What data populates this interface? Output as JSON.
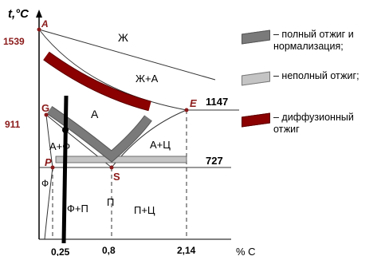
{
  "axes": {
    "y_title": "t,°C",
    "x_title": "% C"
  },
  "temperatures": {
    "t1539": "1539",
    "t911": "911",
    "t1147": "1147",
    "t727": "727"
  },
  "points": {
    "A": "A",
    "G": "G",
    "E": "E",
    "P": "P",
    "S": "S"
  },
  "regions": {
    "liquid": "Ж",
    "liquid_austenite": "Ж+А",
    "austenite": "А",
    "austenite_ferrite": "А+Ф",
    "austenite_cementite": "А+Ц",
    "ferrite": "Ф",
    "ferrite_pearlite": "Ф+П",
    "pearlite": "П",
    "pearlite_cementite": "П+Ц"
  },
  "x_ticks": {
    "c025": "0,25",
    "c08": "0,8",
    "c214": "2,14"
  },
  "legend": {
    "full_annealing": {
      "text": "– полный отжиг и\nнормализация;",
      "color": "#7a7a7a"
    },
    "incomplete_annealing": {
      "text": "– неполный отжиг;",
      "color": "#c4c4c4"
    },
    "diffusion_annealing": {
      "text": "– диффузионный\nотжиг",
      "color": "#8b0000"
    }
  },
  "colors": {
    "point_color": "#8b1a1a",
    "line_color": "#333333"
  }
}
